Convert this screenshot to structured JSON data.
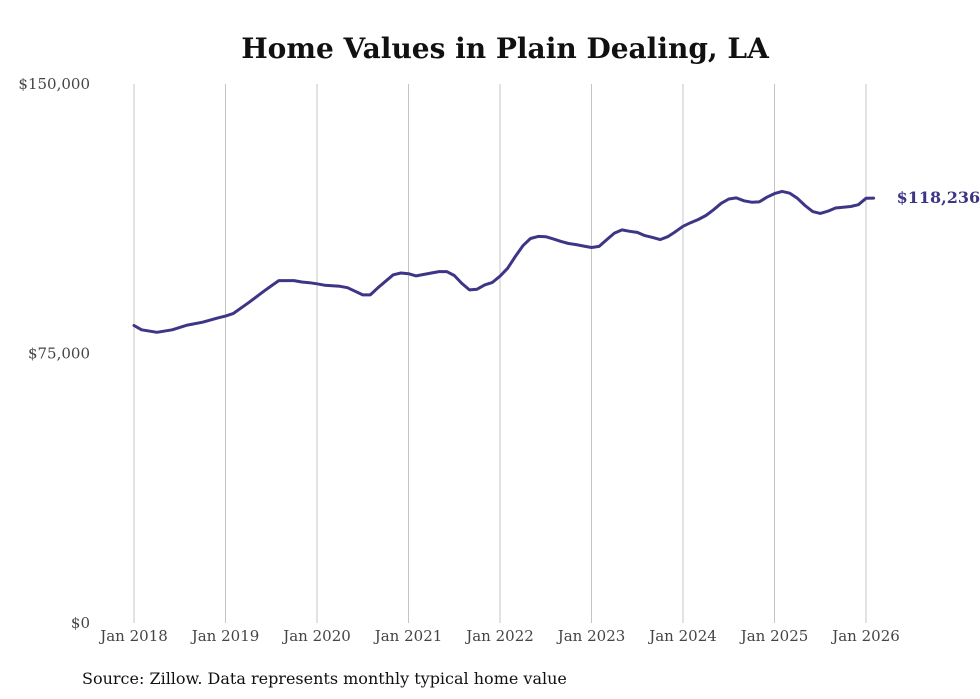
{
  "chart_data": {
    "type": "line",
    "title": "Home Values in Plain Dealing, LA",
    "xlabel": "",
    "ylabel": "",
    "ylim": [
      0,
      150000
    ],
    "y_ticks": [
      {
        "value": 0,
        "label": "$0"
      },
      {
        "value": 75000,
        "label": "$75,000"
      },
      {
        "value": 150000,
        "label": "$150,000"
      }
    ],
    "x_ticks": [
      {
        "value": 2018,
        "label": "Jan 2018"
      },
      {
        "value": 2019,
        "label": "Jan 2019"
      },
      {
        "value": 2020,
        "label": "Jan 2020"
      },
      {
        "value": 2021,
        "label": "Jan 2021"
      },
      {
        "value": 2022,
        "label": "Jan 2022"
      },
      {
        "value": 2023,
        "label": "Jan 2023"
      },
      {
        "value": 2024,
        "label": "Jan 2024"
      },
      {
        "value": 2025,
        "label": "Jan 2025"
      },
      {
        "value": 2026,
        "label": "Jan 2026"
      }
    ],
    "xlim": [
      2018,
      2026
    ],
    "grid": "vertical",
    "series": [
      {
        "name": "Typical home value",
        "color": "#3d3585",
        "end_label": "$118,236",
        "x": [
          2018.0,
          2018.083,
          2018.25,
          2018.417,
          2018.583,
          2018.75,
          2018.917,
          2019.0,
          2019.083,
          2019.25,
          2019.417,
          2019.5,
          2019.583,
          2019.75,
          2019.833,
          2019.917,
          2020.0,
          2020.083,
          2020.25,
          2020.333,
          2020.5,
          2020.583,
          2020.667,
          2020.833,
          2020.917,
          2021.0,
          2021.083,
          2021.25,
          2021.333,
          2021.417,
          2021.5,
          2021.583,
          2021.667,
          2021.75,
          2021.833,
          2021.917,
          2022.0,
          2022.083,
          2022.167,
          2022.25,
          2022.333,
          2022.417,
          2022.5,
          2022.583,
          2022.667,
          2022.75,
          2022.833,
          2022.917,
          2023.0,
          2023.083,
          2023.167,
          2023.25,
          2023.333,
          2023.417,
          2023.5,
          2023.583,
          2023.667,
          2023.75,
          2023.833,
          2023.917,
          2024.0,
          2024.083,
          2024.167,
          2024.25,
          2024.333,
          2024.417,
          2024.5,
          2024.583,
          2024.667,
          2024.75,
          2024.833,
          2024.917,
          2025.0,
          2025.083,
          2025.167,
          2025.25,
          2025.333,
          2025.417,
          2025.5,
          2025.583,
          2025.667,
          2025.75,
          2025.833,
          2025.917,
          2026.0,
          2026.083
        ],
        "values": [
          82800,
          81600,
          80900,
          81600,
          82900,
          83700,
          84900,
          85400,
          86100,
          89100,
          92300,
          93800,
          95300,
          95300,
          94900,
          94700,
          94400,
          94000,
          93700,
          93300,
          91300,
          91300,
          93300,
          96900,
          97400,
          97200,
          96600,
          97400,
          97800,
          97800,
          96700,
          94500,
          92700,
          92900,
          94100,
          94800,
          96500,
          98700,
          102000,
          105000,
          107000,
          107600,
          107500,
          106900,
          106200,
          105600,
          105300,
          104900,
          104500,
          104800,
          106700,
          108500,
          109400,
          109000,
          108700,
          107800,
          107300,
          106700,
          107500,
          108900,
          110400,
          111400,
          112300,
          113400,
          115000,
          116800,
          118000,
          118300,
          117500,
          117100,
          117200,
          118500,
          119500,
          120100,
          119600,
          118200,
          116200,
          114500,
          114000,
          114600,
          115500,
          115700,
          115900,
          116400,
          118200,
          118236
        ]
      }
    ]
  },
  "source_note": "Source: Zillow. Data represents monthly typical home value"
}
